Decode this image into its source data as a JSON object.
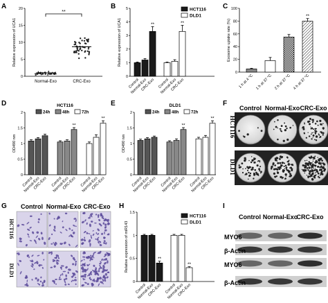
{
  "panels": {
    "A": {
      "letter": "A"
    },
    "B": {
      "letter": "B"
    },
    "C": {
      "letter": "C"
    },
    "D": {
      "letter": "D"
    },
    "E": {
      "letter": "E"
    },
    "F": {
      "letter": "F",
      "col_labels": [
        "Control",
        "Normal-Exo",
        "CRC-Exo"
      ],
      "row_labels": [
        "HCT116",
        "DLD1"
      ]
    },
    "G": {
      "letter": "G",
      "col_labels": [
        "Control",
        "Normal-Exo",
        "CRC-Exo"
      ],
      "row_labels": [
        "HCT116",
        "DLD1"
      ]
    },
    "H": {
      "letter": "H"
    },
    "I": {
      "letter": "I",
      "col_labels": [
        "Control",
        "Normal-Exo",
        "CRC-Exo"
      ],
      "row_labels": [
        "MYO6",
        "β-Actin",
        "MYO6",
        "β-Actin"
      ]
    }
  },
  "chart_data": [
    {
      "id": "A",
      "type": "scatter",
      "ylabel": "Relative expression of UCA1",
      "categories": [
        "Normal-Exo",
        "CRC-Exo"
      ],
      "ylim": [
        0,
        20
      ],
      "yticks": [
        0,
        5,
        10,
        15,
        20
      ],
      "means": [
        1.0,
        8.7
      ],
      "spread": [
        0.6,
        3.8
      ],
      "annotation": "**"
    },
    {
      "id": "B",
      "type": "bar",
      "ylabel": "Relative expression of UCA1",
      "ylim": [
        0,
        5
      ],
      "yticks": [
        0,
        1,
        2,
        3,
        4,
        5
      ],
      "legend": [
        "HCT116",
        "DLD1"
      ],
      "groups": [
        {
          "name": "HCT116",
          "categories": [
            "Control",
            "Normal-Exo",
            "CRC-Exo"
          ],
          "values": [
            1.0,
            1.2,
            3.3
          ],
          "errors": [
            0.05,
            0.1,
            0.35
          ],
          "marks": [
            "",
            "",
            "**"
          ]
        },
        {
          "name": "DLD1",
          "categories": [
            "Control",
            "Normal-Exo",
            "CRC-Exo"
          ],
          "values": [
            1.0,
            1.1,
            3.3
          ],
          "errors": [
            0.05,
            0.12,
            0.45
          ],
          "marks": [
            "",
            "",
            "**"
          ]
        }
      ]
    },
    {
      "id": "C",
      "type": "bar",
      "ylabel": "Exosome uptake rate (%)",
      "ylim": [
        0,
        100
      ],
      "yticks": [
        0,
        20,
        40,
        60,
        80,
        100
      ],
      "categories": [
        "1 h at 4 °C",
        "1 h at 37 °C",
        "2 h at 37 °C",
        "4 h at 37 °C"
      ],
      "values": [
        5,
        18,
        55,
        80
      ],
      "errors": [
        1,
        5,
        4,
        4
      ],
      "marks": [
        "",
        "",
        "",
        "**"
      ]
    },
    {
      "id": "D",
      "type": "bar",
      "title": "HCT116",
      "ylabel": "OD490 nm",
      "ylim": [
        0,
        2.0
      ],
      "yticks": [
        0,
        0.5,
        1.0,
        1.5,
        2.0
      ],
      "legend": [
        "24h",
        "48h",
        "72h"
      ],
      "categories": [
        "Control",
        "Normal-Exo",
        "CRC-Exo"
      ],
      "series": [
        {
          "name": "24h",
          "values": [
            1.08,
            1.15,
            1.25
          ],
          "errors": [
            0.04,
            0.04,
            0.05
          ],
          "marks": [
            "",
            "",
            ""
          ]
        },
        {
          "name": "48h",
          "values": [
            1.05,
            1.08,
            1.45
          ],
          "errors": [
            0.04,
            0.04,
            0.06
          ],
          "marks": [
            "",
            "",
            "**"
          ]
        },
        {
          "name": "72h",
          "values": [
            1.0,
            1.2,
            1.65
          ],
          "errors": [
            0.05,
            0.08,
            0.08
          ],
          "marks": [
            "",
            "",
            "**"
          ]
        }
      ]
    },
    {
      "id": "E",
      "type": "bar",
      "title": "DLD1",
      "ylabel": "OD490 nm",
      "ylim": [
        0,
        2.0
      ],
      "yticks": [
        0,
        0.5,
        1.0,
        1.5,
        2.0
      ],
      "legend": [
        "24h",
        "48h",
        "72h"
      ],
      "categories": [
        "Control",
        "Normal-Exo",
        "CRC-Exo"
      ],
      "series": [
        {
          "name": "24h",
          "values": [
            1.1,
            1.15,
            1.2
          ],
          "errors": [
            0.04,
            0.04,
            0.04
          ],
          "marks": [
            "",
            "",
            ""
          ]
        },
        {
          "name": "48h",
          "values": [
            1.05,
            1.1,
            1.45
          ],
          "errors": [
            0.04,
            0.05,
            0.06
          ],
          "marks": [
            "",
            "",
            "**"
          ]
        },
        {
          "name": "72h",
          "values": [
            1.15,
            1.2,
            1.65
          ],
          "errors": [
            0.05,
            0.06,
            0.08
          ],
          "marks": [
            "",
            "",
            "**"
          ]
        }
      ]
    },
    {
      "id": "H",
      "type": "bar",
      "ylabel": "Relative expression of miR143",
      "ylim": [
        0,
        1.5
      ],
      "yticks": [
        0,
        0.5,
        1.0,
        1.5
      ],
      "legend": [
        "HCT116",
        "DLD1"
      ],
      "groups": [
        {
          "name": "HCT116",
          "categories": [
            "Control",
            "Normal-Exo",
            "CRC-Exo"
          ],
          "values": [
            1.0,
            1.0,
            0.4
          ],
          "errors": [
            0.02,
            0.02,
            0.04
          ],
          "marks": [
            "",
            "",
            "**"
          ]
        },
        {
          "name": "DLD1",
          "categories": [
            "Control",
            "Normal-Exo",
            "CRC-Exo"
          ],
          "values": [
            1.0,
            1.0,
            0.3
          ],
          "errors": [
            0.02,
            0.02,
            0.02
          ],
          "marks": [
            "",
            "",
            "**"
          ]
        }
      ]
    }
  ],
  "colors": {
    "black": "#1a1a1a",
    "dark_gray": "#555555",
    "mid_gray": "#888888",
    "white": "#ffffff",
    "stain": "#5b4a9a"
  }
}
